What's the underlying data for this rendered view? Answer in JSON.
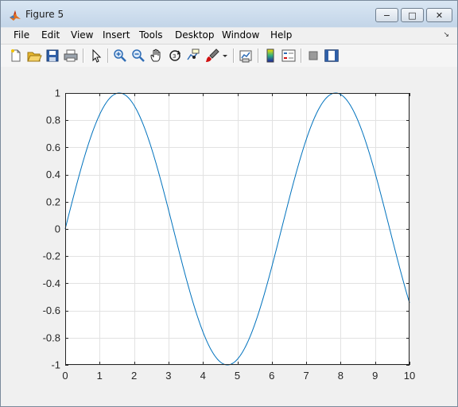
{
  "window": {
    "title": "Figure 5",
    "controls": {
      "minimize": "−",
      "maximize": "□",
      "close": "✕"
    }
  },
  "menu": {
    "items": [
      "File",
      "Edit",
      "View",
      "Insert",
      "Tools",
      "Desktop",
      "Window",
      "Help"
    ]
  },
  "toolbar": {
    "icons": [
      "new-figure-icon",
      "open-file-icon",
      "save-icon",
      "print-icon",
      "pointer-icon",
      "zoom-in-icon",
      "zoom-out-icon",
      "pan-hand-icon",
      "rotate-3d-icon",
      "data-cursor-icon",
      "brush-icon",
      "link-plot-icon",
      "colorbar-icon",
      "legend-icon",
      "hide-plot-tools-icon",
      "show-plot-tools-icon"
    ]
  },
  "colors": {
    "line": "#0072bd",
    "grid": "#e2e2e2",
    "axes_bg": "#ffffff",
    "figure_bg": "#f0f0f0"
  },
  "chart_data": {
    "type": "line",
    "function": "sin(x)",
    "x_range": [
      0,
      10
    ],
    "ylim": [
      -1,
      1
    ],
    "xticks": [
      0,
      1,
      2,
      3,
      4,
      5,
      6,
      7,
      8,
      9,
      10
    ],
    "yticks": [
      -1,
      -0.8,
      -0.6,
      -0.4,
      -0.2,
      0,
      0.2,
      0.4,
      0.6,
      0.8,
      1
    ],
    "xtick_labels": [
      "0",
      "1",
      "2",
      "3",
      "4",
      "5",
      "6",
      "7",
      "8",
      "9",
      "10"
    ],
    "ytick_labels": [
      "-1",
      "-0.8",
      "-0.6",
      "-0.4",
      "-0.2",
      "0",
      "0.2",
      "0.4",
      "0.6",
      "0.8",
      "1"
    ],
    "grid": true,
    "series": [
      {
        "x": [
          0,
          0.5,
          1,
          1.5,
          1.5708,
          2,
          2.5,
          3,
          3.5,
          4,
          4.5,
          4.7124,
          5,
          5.5,
          6,
          6.5,
          7,
          7.5,
          7.854,
          8,
          8.5,
          9,
          9.5,
          10
        ],
        "y": [
          0,
          0.479,
          0.841,
          0.997,
          1,
          0.909,
          0.598,
          0.141,
          -0.351,
          -0.757,
          -0.978,
          -1,
          -0.959,
          -0.706,
          -0.279,
          0.215,
          0.657,
          0.938,
          1,
          0.989,
          0.798,
          0.412,
          -0.075,
          -0.544
        ]
      }
    ]
  }
}
